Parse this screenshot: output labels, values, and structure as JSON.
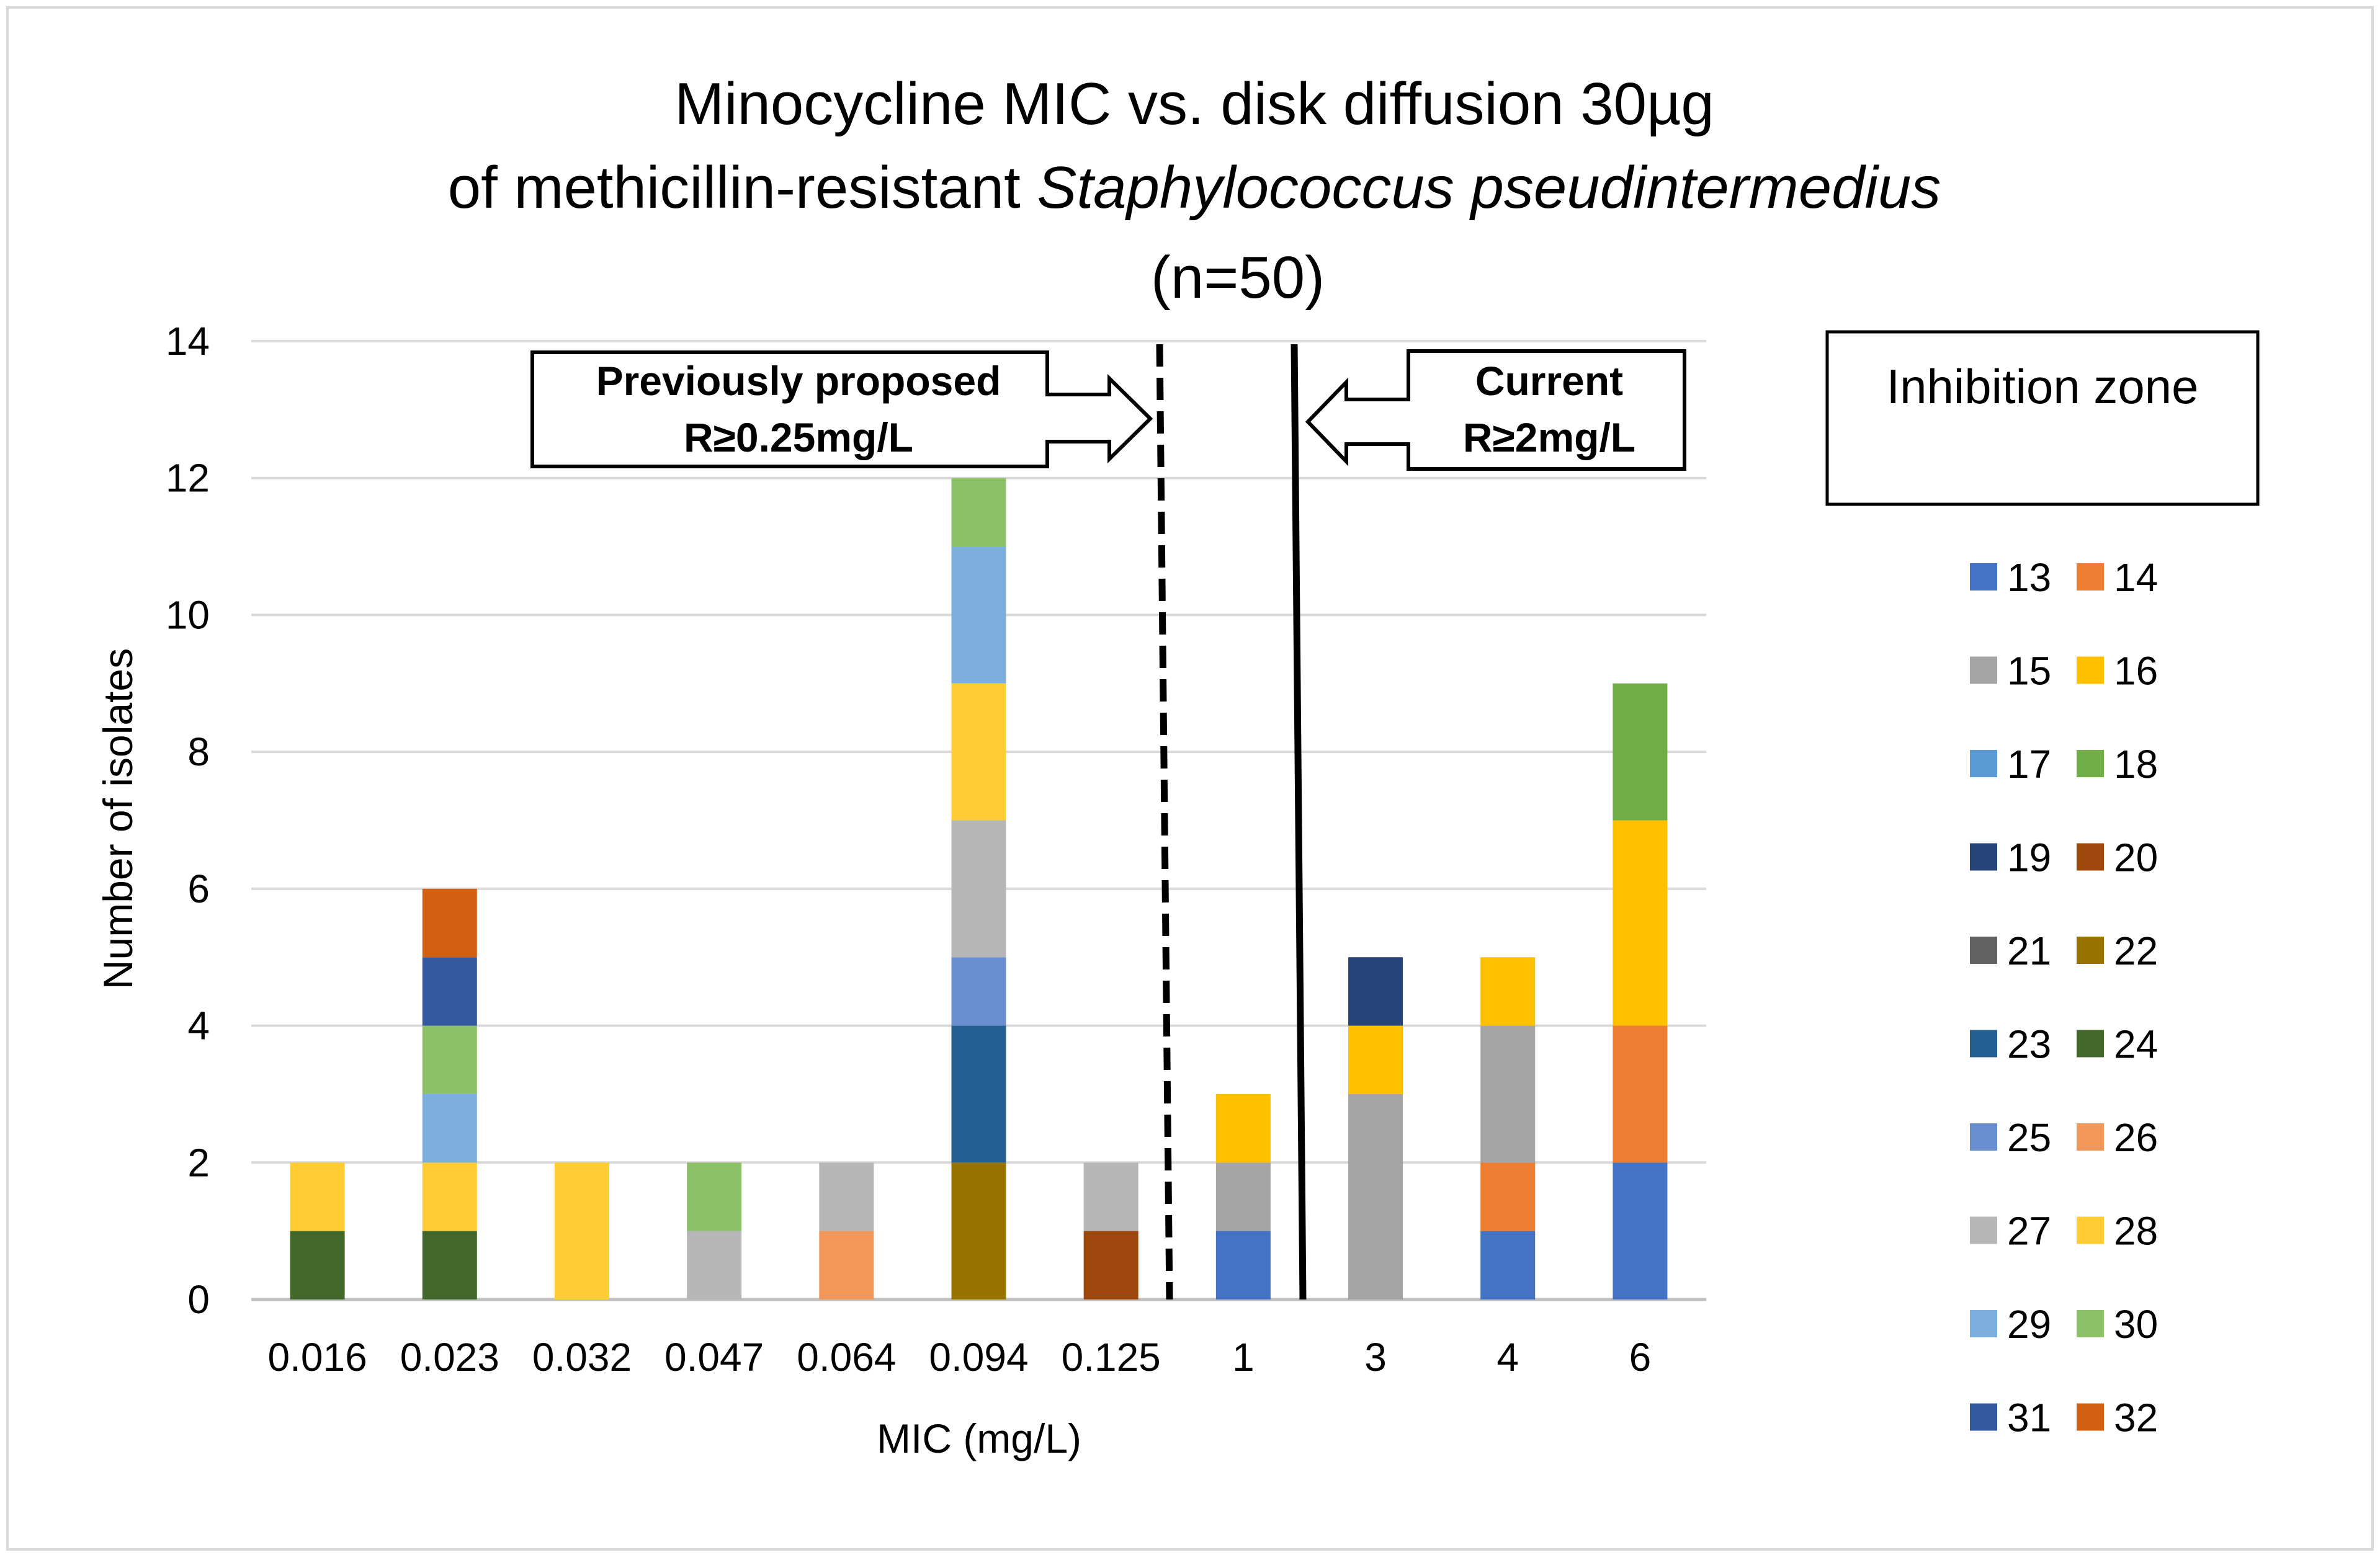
{
  "chart_data": {
    "type": "bar",
    "stacked": true,
    "title_lines": [
      "Minocycline MIC vs. disk diffusion 30µg",
      "of methicillin-resistant ",
      "(n=50)"
    ],
    "title_italic": "Staphylococcus pseudintermedius",
    "xlabel": "MIC (mg/L)",
    "ylabel": "Number of isolates",
    "ylim": [
      0,
      14
    ],
    "yticks": [
      0,
      2,
      4,
      6,
      8,
      10,
      12,
      14
    ],
    "grid": true,
    "categories": [
      "0.016",
      "0.023",
      "0.032",
      "0.047",
      "0.064",
      "0.094",
      "0.125",
      "1",
      "3",
      "4",
      "6"
    ],
    "legend_title": "Inhibition zone",
    "legend_placement": "right",
    "series": [
      {
        "name": "13",
        "color": "#4472C4",
        "values": [
          0,
          0,
          0,
          0,
          0,
          0,
          0,
          1,
          0,
          1,
          2
        ]
      },
      {
        "name": "14",
        "color": "#ED7D31",
        "values": [
          0,
          0,
          0,
          0,
          0,
          0,
          0,
          0,
          0,
          1,
          2
        ]
      },
      {
        "name": "15",
        "color": "#A5A5A5",
        "values": [
          0,
          0,
          0,
          0,
          0,
          0,
          0,
          1,
          3,
          2,
          0
        ]
      },
      {
        "name": "16",
        "color": "#FFC000",
        "values": [
          0,
          0,
          0,
          0,
          0,
          0,
          0,
          1,
          1,
          1,
          3
        ]
      },
      {
        "name": "17",
        "color": "#5B9BD5",
        "values": [
          0,
          0,
          0,
          0,
          0,
          0,
          0,
          0,
          0,
          0,
          0
        ]
      },
      {
        "name": "18",
        "color": "#70AD47",
        "values": [
          0,
          0,
          0,
          0,
          0,
          0,
          0,
          0,
          0,
          0,
          2
        ]
      },
      {
        "name": "19",
        "color": "#264478",
        "values": [
          0,
          0,
          0,
          0,
          0,
          0,
          0,
          0,
          1,
          0,
          0
        ]
      },
      {
        "name": "20",
        "color": "#9E480E",
        "values": [
          0,
          0,
          0,
          0,
          0,
          0,
          1,
          0,
          0,
          0,
          0
        ]
      },
      {
        "name": "21",
        "color": "#636363",
        "values": [
          0,
          0,
          0,
          0,
          0,
          0,
          0,
          0,
          0,
          0,
          0
        ]
      },
      {
        "name": "22",
        "color": "#997300",
        "values": [
          0,
          0,
          0,
          0,
          0,
          2,
          0,
          0,
          0,
          0,
          0
        ]
      },
      {
        "name": "23",
        "color": "#255E91",
        "values": [
          0,
          0,
          0,
          0,
          0,
          2,
          0,
          0,
          0,
          0,
          0
        ]
      },
      {
        "name": "24",
        "color": "#43682B",
        "values": [
          1,
          1,
          0,
          0,
          0,
          0,
          0,
          0,
          0,
          0,
          0
        ]
      },
      {
        "name": "25",
        "color": "#698ED0",
        "values": [
          0,
          0,
          0,
          0,
          0,
          1,
          0,
          0,
          0,
          0,
          0
        ]
      },
      {
        "name": "26",
        "color": "#F1975A",
        "values": [
          0,
          0,
          0,
          0,
          1,
          0,
          0,
          0,
          0,
          0,
          0
        ]
      },
      {
        "name": "27",
        "color": "#B7B7B7",
        "values": [
          0,
          0,
          0,
          1,
          1,
          2,
          1,
          0,
          0,
          0,
          0
        ]
      },
      {
        "name": "28",
        "color": "#FFCD33",
        "values": [
          1,
          1,
          2,
          0,
          0,
          2,
          0,
          0,
          0,
          0,
          0
        ]
      },
      {
        "name": "29",
        "color": "#7CAFDD",
        "values": [
          0,
          1,
          0,
          0,
          0,
          2,
          0,
          0,
          0,
          0,
          0
        ]
      },
      {
        "name": "30",
        "color": "#8CC168",
        "values": [
          0,
          1,
          0,
          1,
          0,
          1,
          0,
          0,
          0,
          0,
          0
        ]
      },
      {
        "name": "31",
        "color": "#335AA1",
        "values": [
          0,
          1,
          0,
          0,
          0,
          0,
          0,
          0,
          0,
          0,
          0
        ]
      },
      {
        "name": "32",
        "color": "#D26012",
        "values": [
          0,
          1,
          0,
          0,
          0,
          0,
          0,
          0,
          0,
          0,
          0
        ]
      }
    ],
    "annotations": {
      "previous": {
        "lines": [
          "Previously proposed",
          "R≥0.25mg/L"
        ],
        "line_style": "dashed",
        "arrow": "right"
      },
      "current": {
        "lines": [
          "Current",
          "R≥2mg/L"
        ],
        "line_style": "solid",
        "arrow": "left"
      }
    }
  }
}
